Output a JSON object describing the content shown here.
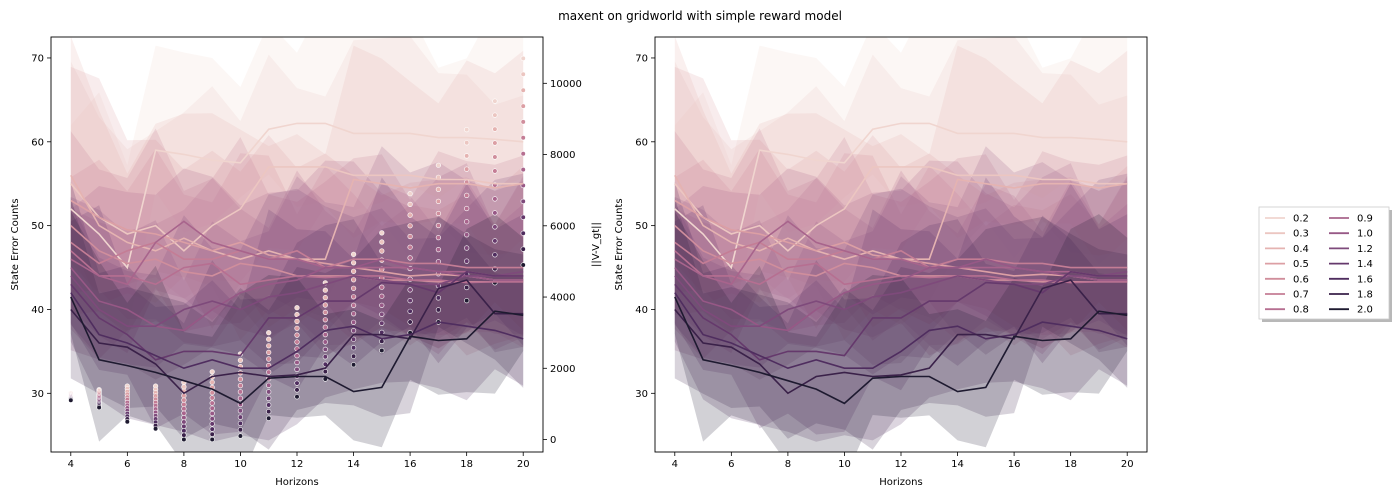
{
  "figure": {
    "title": "maxent on gridworld with simple reward model"
  },
  "legend": {
    "entries": [
      "0.2",
      "0.3",
      "0.4",
      "0.5",
      "0.6",
      "0.7",
      "0.8",
      "0.9",
      "1.0",
      "1.2",
      "1.4",
      "1.6",
      "1.8",
      "2.0"
    ],
    "colors": [
      "#f0d5cf",
      "#ecc6c1",
      "#e5b3b1",
      "#dc9fa4",
      "#d08e9c",
      "#c47d95",
      "#b66f91",
      "#a8648c",
      "#975886",
      "#7e4a7b",
      "#65396c",
      "#4f2d5f",
      "#3a2149",
      "#1e1a30"
    ]
  },
  "chart_data": [
    {
      "type": "line",
      "title": "",
      "xlabel": "Horizons",
      "ylabel": "State Error Counts",
      "ylabel_right": "||V-V_gt||",
      "xlim": [
        3.3,
        20.7
      ],
      "ylim": [
        23,
        72.5
      ],
      "ylim_right": [
        -350,
        11300
      ],
      "xticks": [
        4,
        6,
        8,
        10,
        12,
        14,
        16,
        18,
        20
      ],
      "yticks": [
        30,
        40,
        50,
        60,
        70
      ],
      "yticks_right": [
        0,
        2000,
        4000,
        6000,
        8000,
        10000
      ],
      "x": [
        4,
        5,
        6,
        7,
        8,
        9,
        10,
        11,
        12,
        13,
        14,
        15,
        16,
        17,
        18,
        19,
        20
      ],
      "series": [
        {
          "name": "0.2",
          "values": [
            52,
            49,
            45,
            59,
            58.5,
            57.8,
            57.5,
            61.5,
            62.2,
            62.2,
            61,
            61,
            61,
            60.5,
            60.5,
            60.3,
            60
          ]
        },
        {
          "name": "0.3",
          "values": [
            55,
            51,
            49,
            50,
            47,
            50,
            52,
            57,
            57,
            57,
            56,
            56,
            56,
            55.5,
            55.5,
            55,
            55
          ]
        },
        {
          "name": "0.4",
          "values": [
            56,
            50,
            48,
            47,
            48.5,
            47,
            46,
            47,
            46,
            46,
            55.5,
            55,
            54.5,
            55,
            55,
            54.5,
            55
          ]
        },
        {
          "name": "0.5",
          "values": [
            53,
            51,
            49.5,
            49,
            48,
            47,
            48,
            46.5,
            46,
            45.5,
            45,
            44.5,
            44,
            44.2,
            44,
            43.5,
            43.5
          ]
        },
        {
          "name": "0.6",
          "values": [
            50,
            47,
            45.5,
            46,
            44.5,
            44,
            45.5,
            45,
            44,
            44,
            44,
            43.5,
            43.5,
            43.3,
            43.3,
            43.3,
            43.3
          ]
        },
        {
          "name": "0.7",
          "values": [
            48,
            45.5,
            47,
            48,
            46,
            46,
            47,
            46,
            47,
            45,
            46,
            46,
            45.5,
            45.5,
            45,
            45,
            45
          ]
        },
        {
          "name": "0.8",
          "values": [
            47,
            44,
            44,
            43,
            45,
            45.5,
            43,
            43.5,
            44,
            43.8,
            44,
            44,
            43.5,
            43.5,
            43.2,
            43.3,
            43.3
          ]
        },
        {
          "name": "0.9",
          "values": [
            46,
            44,
            43,
            48,
            50.5,
            48,
            47,
            46,
            46,
            45,
            45,
            45,
            45,
            44.5,
            44.5,
            44,
            44
          ]
        },
        {
          "name": "1.0",
          "values": [
            45,
            41,
            40,
            38,
            37.5,
            40,
            42,
            43,
            43.5,
            45,
            45,
            46,
            45,
            44.5,
            44,
            43.5,
            43.5
          ]
        },
        {
          "name": "1.2",
          "values": [
            44,
            40,
            38,
            38,
            40,
            41,
            40,
            41.5,
            42,
            43,
            44,
            43.5,
            43,
            43,
            44,
            44,
            44.5
          ]
        },
        {
          "name": "1.4",
          "values": [
            43,
            39,
            37,
            34,
            35,
            35,
            34.5,
            39,
            39,
            41,
            41,
            43.2,
            43,
            42,
            44.5,
            44,
            44
          ]
        },
        {
          "name": "1.6",
          "values": [
            42,
            37,
            36,
            34.5,
            33,
            34,
            33,
            33,
            35,
            37.5,
            38,
            36.5,
            37,
            38.5,
            38,
            37.5,
            36.5
          ]
        },
        {
          "name": "1.8",
          "values": [
            40,
            36,
            35.5,
            33.5,
            30,
            32,
            32.5,
            32,
            32.2,
            33,
            37,
            37,
            36.5,
            42.5,
            43.5,
            39.5,
            39.5
          ]
        },
        {
          "name": "2.0",
          "values": [
            41.5,
            34,
            33.3,
            32.5,
            31.5,
            30.5,
            28.8,
            31.8,
            32,
            32,
            30.2,
            30.7,
            36.8,
            36.3,
            36.5,
            39.8,
            39.3
          ]
        }
      ],
      "scatter": {
        "axis": "right",
        "x": [
          4,
          5,
          6,
          7,
          8,
          9,
          10,
          11,
          12,
          13,
          14,
          15,
          16,
          17,
          18,
          19,
          20
        ],
        "min": [
          1100,
          900,
          500,
          300,
          0,
          0,
          100,
          600,
          1200,
          1700,
          2100,
          2500,
          3000,
          3300,
          3900,
          4400,
          4900
        ],
        "max": [
          1300,
          1400,
          1500,
          1500,
          1600,
          1900,
          2400,
          3000,
          3700,
          4400,
          5200,
          5800,
          6900,
          7700,
          8700,
          9500,
          10700
        ]
      }
    },
    {
      "type": "line",
      "title": "",
      "xlabel": "Horizons",
      "ylabel": "State Error Counts",
      "xlim": [
        3.3,
        20.7
      ],
      "ylim": [
        23,
        72.5
      ],
      "xticks": [
        4,
        6,
        8,
        10,
        12,
        14,
        16,
        18,
        20
      ],
      "yticks": [
        30,
        40,
        50,
        60,
        70
      ],
      "x": [
        4,
        5,
        6,
        7,
        8,
        9,
        10,
        11,
        12,
        13,
        14,
        15,
        16,
        17,
        18,
        19,
        20
      ],
      "series_same_as_left": true
    }
  ]
}
